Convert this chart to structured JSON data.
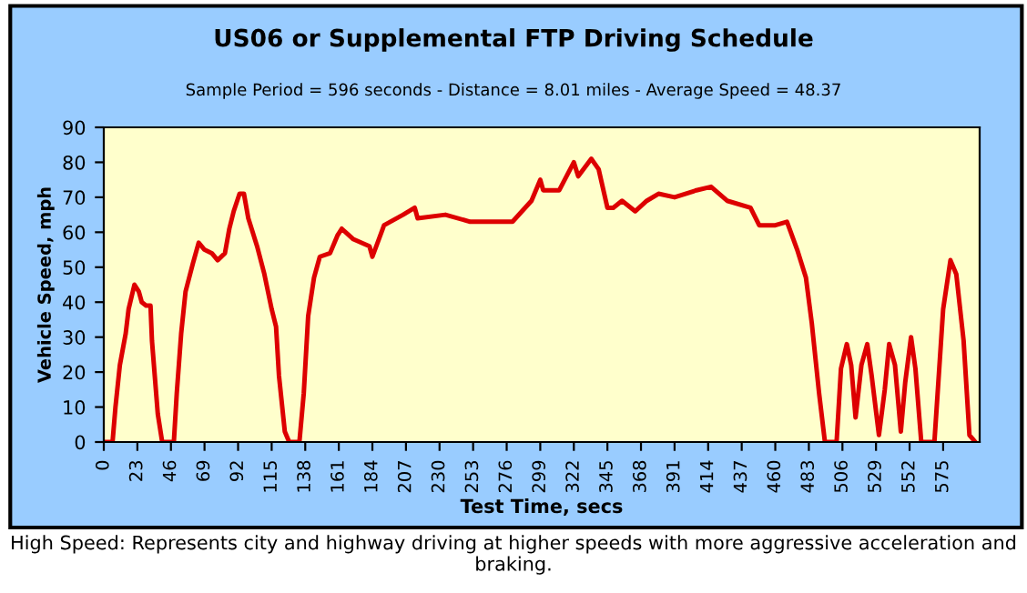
{
  "chart_data": {
    "type": "line",
    "title": "US06 or Supplemental FTP Driving Schedule",
    "subtitle": "Sample Period = 596 seconds - Distance = 8.01 miles - Average Speed = 48.37",
    "xlabel": "Test Time, secs",
    "ylabel": "Vehicle Speed, mph",
    "annotations": [
      "High Speed: Represents city and highway driving at higher speeds with more aggressive acceleration and braking."
    ],
    "series": [
      {
        "color": "#dd0000",
        "x": [
          0,
          6,
          8,
          11,
          15,
          17,
          21,
          24,
          26,
          29,
          32,
          33,
          37,
          40,
          48,
          50,
          53,
          56,
          61,
          65,
          69,
          74,
          78,
          83,
          86,
          89,
          93,
          96,
          99,
          105,
          110,
          115,
          118,
          120,
          124,
          127,
          134,
          137,
          140,
          144,
          148,
          155,
          160,
          163,
          171,
          182,
          184,
          192,
          205,
          213,
          215,
          234,
          251,
          268,
          280,
          293,
          299,
          301,
          312,
          322,
          325,
          334,
          339,
          345,
          349,
          355,
          364,
          372,
          380,
          391,
          406,
          416,
          427,
          443,
          449,
          460,
          468,
          475,
          481,
          485,
          490,
          494,
          502,
          505,
          509,
          512,
          515,
          519,
          523,
          526,
          531,
          535,
          538,
          542,
          546,
          549,
          553,
          556,
          560,
          569,
          575,
          580,
          584,
          589,
          593,
          597
        ],
        "values": [
          0,
          0,
          10,
          22,
          31,
          38,
          45,
          43,
          40,
          39,
          39,
          29,
          8,
          0,
          0,
          14,
          31,
          43,
          51,
          57,
          55,
          54,
          52,
          54,
          61,
          66,
          71,
          71,
          64,
          56,
          48,
          38,
          33,
          19,
          3,
          0,
          0,
          14,
          36,
          47,
          53,
          54,
          59,
          61,
          58,
          56,
          53,
          62,
          65,
          67,
          64,
          65,
          63,
          63,
          63,
          69,
          75,
          72,
          72,
          80,
          76,
          81,
          78,
          67,
          67,
          69,
          66,
          69,
          71,
          70,
          72,
          73,
          69,
          67,
          62,
          62,
          63,
          55,
          47,
          34,
          14,
          0,
          0,
          21,
          28,
          22,
          7,
          22,
          28,
          19,
          2,
          15,
          28,
          22,
          3,
          17,
          30,
          21,
          0,
          0,
          38,
          52,
          48,
          29,
          2,
          0
        ]
      }
    ],
    "xlim": [
      0,
      600
    ],
    "xticks": [
      0,
      23,
      46,
      69,
      92,
      115,
      138,
      161,
      184,
      207,
      230,
      253,
      276,
      299,
      322,
      345,
      368,
      391,
      414,
      437,
      460,
      483,
      506,
      529,
      552,
      575
    ],
    "ylim": [
      0,
      90
    ],
    "yticks": [
      0,
      10,
      20,
      30,
      40,
      50,
      60,
      70,
      80,
      90
    ],
    "grid": false,
    "legend": false,
    "marker": "none",
    "line_style": "solid"
  }
}
